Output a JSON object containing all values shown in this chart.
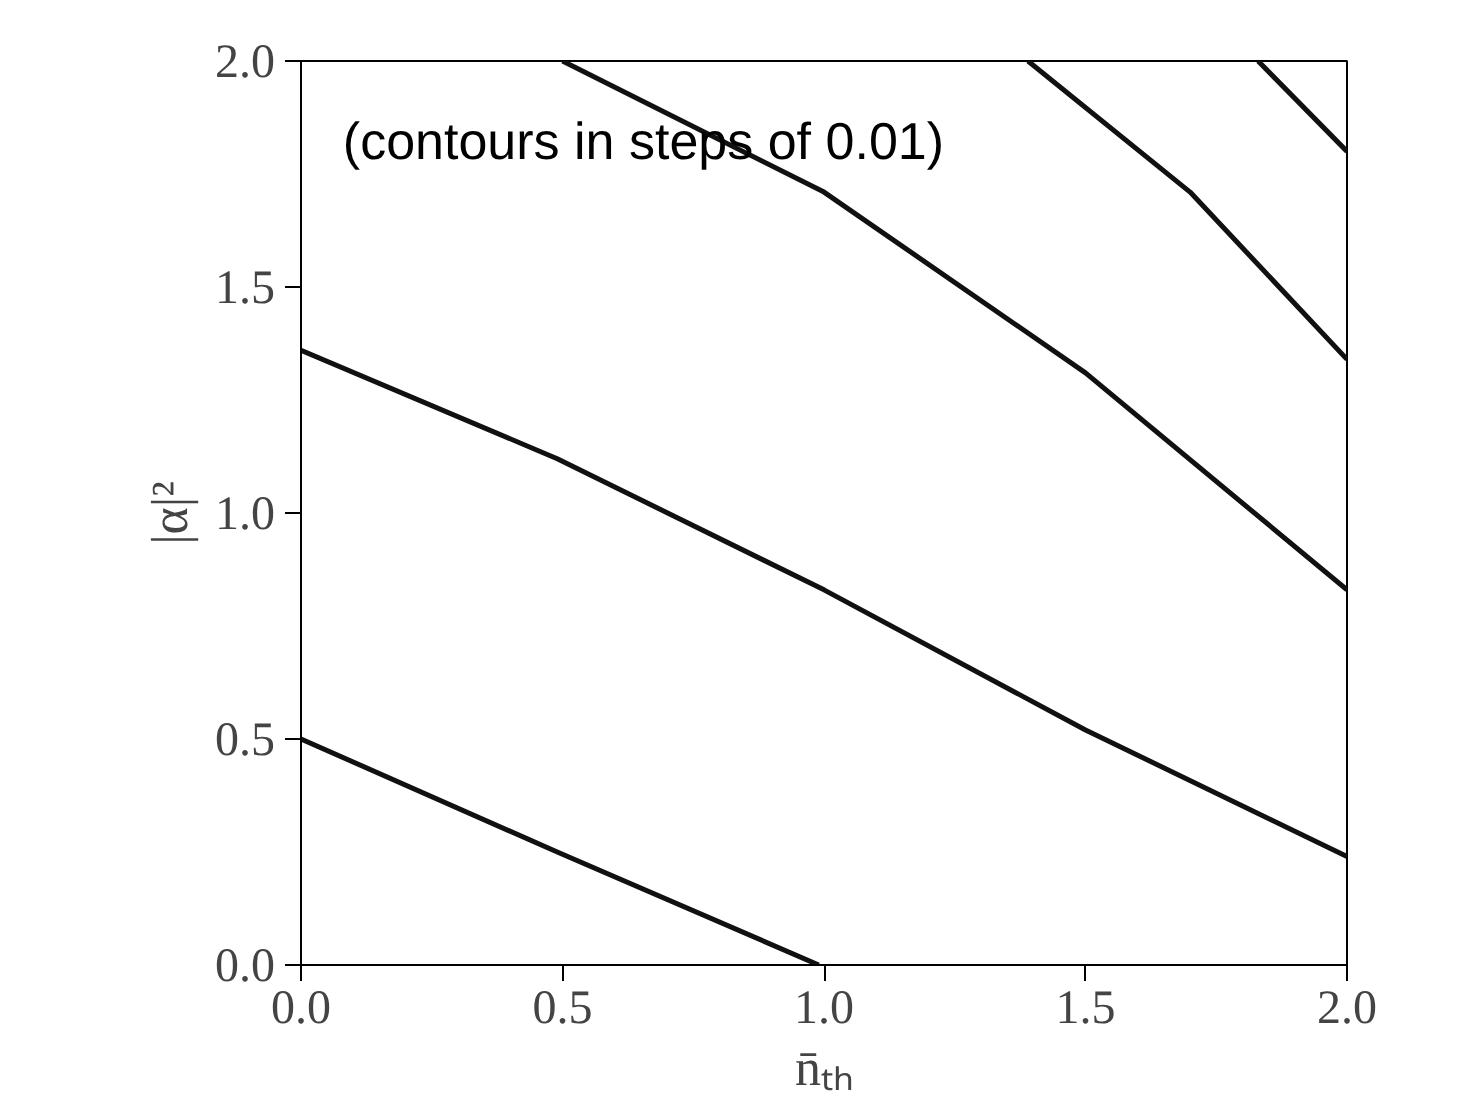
{
  "chart_data": {
    "type": "line",
    "xlabel": "n̄ₜₕ",
    "ylabel": "|α|²",
    "annotations": [
      "(contours in steps of 0.01)"
    ],
    "xlim": [
      0,
      2
    ],
    "ylim": [
      0,
      2
    ],
    "xticks": [
      {
        "value": 0,
        "label": "0.0"
      },
      0.5,
      {
        "value": 1,
        "label": "1.0"
      },
      1.5,
      {
        "value": 2,
        "label": "2.0"
      }
    ],
    "yticks": [
      {
        "value": 0,
        "label": "0.0"
      },
      0.5,
      {
        "value": 1,
        "label": "1.0"
      },
      1.5,
      {
        "value": 2,
        "label": "2.0"
      }
    ],
    "grid": false,
    "series": [
      {
        "color": "#111111",
        "x": [
          0,
          0.49,
          0.99
        ],
        "values": [
          0.5,
          0.25,
          0
        ]
      },
      {
        "color": "#111111",
        "x": [
          0,
          0.49,
          1.0,
          1.5,
          2.0
        ],
        "values": [
          1.36,
          1.12,
          0.83,
          0.52,
          0.24
        ]
      },
      {
        "color": "#111111",
        "x": [
          0.5,
          1.0,
          1.5,
          2.0
        ],
        "values": [
          2.0,
          1.71,
          1.31,
          0.83
        ]
      },
      {
        "color": "#111111",
        "x": [
          1.39,
          1.7,
          2.0
        ],
        "values": [
          2.0,
          1.71,
          1.34
        ]
      },
      {
        "color": "#111111",
        "x": [
          1.83,
          2.0
        ],
        "values": [
          2.0,
          1.8
        ]
      }
    ]
  }
}
